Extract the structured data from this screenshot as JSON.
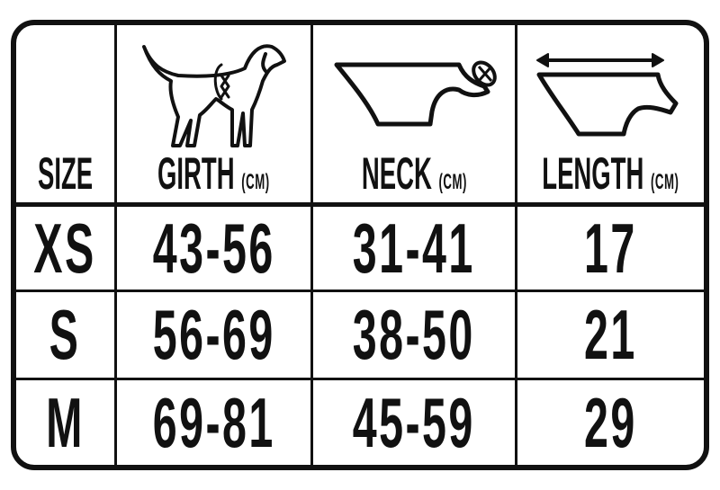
{
  "table": {
    "headers": [
      {
        "label": "SIZE",
        "unit": ""
      },
      {
        "label": "GIRTH",
        "unit": "(CM)",
        "icon": "dog-girth-icon"
      },
      {
        "label": "NECK",
        "unit": "(CM)",
        "icon": "garment-neck-icon"
      },
      {
        "label": "LENGTH",
        "unit": "(CM)",
        "icon": "garment-length-icon"
      }
    ],
    "rows": [
      {
        "size": "XS",
        "girth": "43-56",
        "neck": "31-41",
        "length": "17"
      },
      {
        "size": "S",
        "girth": "56-69",
        "neck": "38-50",
        "length": "21"
      },
      {
        "size": "M",
        "girth": "69-81",
        "neck": "45-59",
        "length": "29"
      }
    ]
  },
  "colors": {
    "ink": "#111111",
    "background": "#ffffff"
  }
}
